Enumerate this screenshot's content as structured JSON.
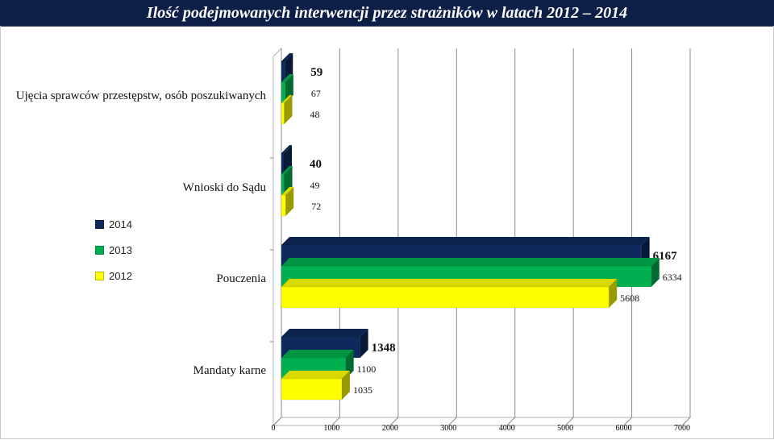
{
  "title": "Ilość podejmowanych interwencji przez strażników w latach 2012 – 2014",
  "colors": {
    "2014": "#0e2a5c",
    "2013": "#00b050",
    "2012": "#ffff00",
    "title_bg": "#0e1f47"
  },
  "chart_data": {
    "type": "bar",
    "orientation": "horizontal",
    "three_d": true,
    "categories": [
      "Ujęcia sprawców przestępstw, osób poszukiwanych",
      "Wnioski do Sądu",
      "Pouczenia",
      "Mandaty karne"
    ],
    "series": [
      {
        "name": "2014",
        "values": [
          59,
          40,
          6167,
          1348
        ]
      },
      {
        "name": "2013",
        "values": [
          67,
          49,
          6334,
          1100
        ]
      },
      {
        "name": "2012",
        "values": [
          48,
          72,
          5608,
          1035
        ]
      }
    ],
    "xlim": [
      0,
      7000
    ],
    "xticks": [
      "0",
      "1000",
      "2000",
      "3000",
      "4000",
      "5000",
      "6000",
      "7000"
    ],
    "legend_position": "left",
    "gridlines": true
  }
}
